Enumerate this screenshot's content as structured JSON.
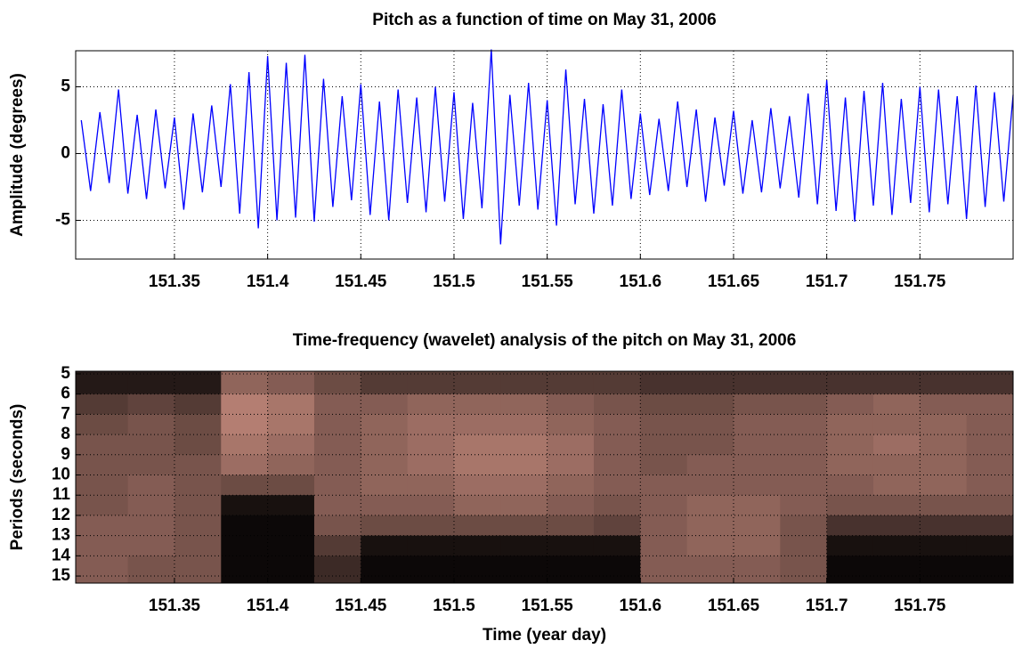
{
  "chart_data": [
    {
      "type": "line",
      "title": "Pitch as a function of time on May 31, 2006",
      "ylabel": "Amplitude (degrees)",
      "x": [
        151.3,
        151.305,
        151.31,
        151.315,
        151.32,
        151.325,
        151.33,
        151.335,
        151.34,
        151.345,
        151.35,
        151.355,
        151.36,
        151.365,
        151.37,
        151.375,
        151.38,
        151.385,
        151.39,
        151.395,
        151.4,
        151.405,
        151.41,
        151.415,
        151.42,
        151.425,
        151.43,
        151.435,
        151.44,
        151.445,
        151.45,
        151.455,
        151.46,
        151.465,
        151.47,
        151.475,
        151.48,
        151.485,
        151.49,
        151.495,
        151.5,
        151.505,
        151.51,
        151.515,
        151.52,
        151.525,
        151.53,
        151.535,
        151.54,
        151.545,
        151.55,
        151.555,
        151.56,
        151.565,
        151.57,
        151.575,
        151.58,
        151.585,
        151.59,
        151.595,
        151.6,
        151.605,
        151.61,
        151.615,
        151.62,
        151.625,
        151.63,
        151.635,
        151.64,
        151.645,
        151.65,
        151.655,
        151.66,
        151.665,
        151.67,
        151.675,
        151.68,
        151.685,
        151.69,
        151.695,
        151.7,
        151.705,
        151.71,
        151.715,
        151.72,
        151.725,
        151.73,
        151.735,
        151.74,
        151.745,
        151.75,
        151.755,
        151.76,
        151.765,
        151.77,
        151.775,
        151.78,
        151.785,
        151.79,
        151.795,
        151.8
      ],
      "values": [
        2.5,
        -2.8,
        3.1,
        -2.2,
        4.8,
        -3.0,
        2.9,
        -3.4,
        3.3,
        -2.6,
        2.7,
        -4.2,
        3.0,
        -2.9,
        3.6,
        -2.5,
        5.2,
        -4.5,
        6.1,
        -5.6,
        7.3,
        -5.0,
        6.8,
        -4.8,
        7.4,
        -5.1,
        5.6,
        -4.0,
        4.3,
        -3.5,
        5.2,
        -4.6,
        3.9,
        -5.0,
        4.8,
        -3.7,
        4.2,
        -4.4,
        5.0,
        -3.6,
        4.6,
        -4.9,
        3.8,
        -4.1,
        7.8,
        -6.8,
        4.4,
        -3.9,
        5.3,
        -4.2,
        4.0,
        -5.4,
        6.3,
        -3.8,
        4.1,
        -4.5,
        3.7,
        -3.9,
        4.8,
        -3.4,
        3.0,
        -3.1,
        2.6,
        -2.8,
        3.9,
        -2.5,
        3.3,
        -3.6,
        2.7,
        -2.4,
        3.2,
        -3.0,
        2.5,
        -2.9,
        3.4,
        -2.6,
        2.8,
        -3.3,
        4.5,
        -3.8,
        5.5,
        -4.3,
        4.2,
        -5.1,
        4.7,
        -3.9,
        5.3,
        -4.6,
        4.1,
        -3.7,
        5.0,
        -4.4,
        4.8,
        -3.8,
        4.3,
        -4.9,
        5.1,
        -4.0,
        4.6,
        -3.6,
        4.4
      ],
      "color": "#0000ff",
      "xlim": [
        151.297,
        151.8
      ],
      "xticks": [
        151.35,
        151.4,
        151.45,
        151.5,
        151.55,
        151.6,
        151.65,
        151.7,
        151.75
      ],
      "ylim": [
        -7.9,
        7.7
      ],
      "yticks": [
        -5,
        0,
        5
      ],
      "grid": true
    },
    {
      "type": "heatmap",
      "title": "Time-frequency (wavelet) analysis of the pitch on May 31, 2006",
      "xlabel": "Time (year day)",
      "ylabel": "Periods (seconds)",
      "x_edges": [
        151.297,
        151.325,
        151.35,
        151.375,
        151.4,
        151.425,
        151.45,
        151.475,
        151.5,
        151.525,
        151.55,
        151.575,
        151.6,
        151.625,
        151.65,
        151.675,
        151.7,
        151.725,
        151.75,
        151.775,
        151.8
      ],
      "y_edges": [
        4.87,
        6,
        7,
        8,
        9,
        10,
        11,
        12,
        13,
        14,
        15.35
      ],
      "z": [
        [
          0.15,
          0.15,
          0.15,
          0.6,
          0.55,
          0.45,
          0.35,
          0.35,
          0.35,
          0.35,
          0.35,
          0.35,
          0.3,
          0.3,
          0.3,
          0.3,
          0.3,
          0.3,
          0.3,
          0.3
        ],
        [
          0.35,
          0.4,
          0.35,
          0.75,
          0.7,
          0.55,
          0.55,
          0.6,
          0.6,
          0.6,
          0.55,
          0.5,
          0.45,
          0.45,
          0.5,
          0.5,
          0.55,
          0.6,
          0.55,
          0.55
        ],
        [
          0.45,
          0.5,
          0.45,
          0.75,
          0.7,
          0.55,
          0.6,
          0.65,
          0.65,
          0.65,
          0.6,
          0.55,
          0.5,
          0.5,
          0.55,
          0.55,
          0.6,
          0.6,
          0.6,
          0.55
        ],
        [
          0.5,
          0.5,
          0.45,
          0.7,
          0.65,
          0.55,
          0.6,
          0.65,
          0.7,
          0.7,
          0.65,
          0.55,
          0.5,
          0.5,
          0.55,
          0.55,
          0.6,
          0.65,
          0.6,
          0.55
        ],
        [
          0.5,
          0.5,
          0.5,
          0.65,
          0.6,
          0.55,
          0.6,
          0.65,
          0.7,
          0.7,
          0.65,
          0.55,
          0.5,
          0.55,
          0.55,
          0.55,
          0.6,
          0.6,
          0.6,
          0.55
        ],
        [
          0.5,
          0.55,
          0.5,
          0.45,
          0.45,
          0.55,
          0.6,
          0.6,
          0.65,
          0.65,
          0.6,
          0.55,
          0.55,
          0.55,
          0.55,
          0.55,
          0.55,
          0.6,
          0.6,
          0.55
        ],
        [
          0.5,
          0.55,
          0.5,
          0.1,
          0.1,
          0.55,
          0.55,
          0.55,
          0.6,
          0.6,
          0.55,
          0.5,
          0.55,
          0.6,
          0.6,
          0.55,
          0.5,
          0.5,
          0.5,
          0.5
        ],
        [
          0.55,
          0.55,
          0.5,
          0.05,
          0.05,
          0.5,
          0.45,
          0.45,
          0.45,
          0.45,
          0.45,
          0.4,
          0.55,
          0.6,
          0.6,
          0.5,
          0.3,
          0.3,
          0.3,
          0.3
        ],
        [
          0.55,
          0.55,
          0.5,
          0.05,
          0.05,
          0.35,
          0.1,
          0.1,
          0.1,
          0.1,
          0.1,
          0.1,
          0.55,
          0.6,
          0.6,
          0.5,
          0.1,
          0.1,
          0.1,
          0.1
        ],
        [
          0.55,
          0.5,
          0.5,
          0.05,
          0.05,
          0.25,
          0.05,
          0.05,
          0.05,
          0.05,
          0.05,
          0.05,
          0.55,
          0.55,
          0.55,
          0.5,
          0.05,
          0.05,
          0.05,
          0.05
        ]
      ],
      "colormap": [
        "#000000",
        "#f0a898"
      ],
      "xlim": [
        151.297,
        151.8
      ],
      "xticks": [
        151.35,
        151.4,
        151.45,
        151.5,
        151.55,
        151.6,
        151.65,
        151.7,
        151.75
      ],
      "ylim": [
        4.87,
        15.35
      ],
      "yticks": [
        5,
        6,
        7,
        8,
        9,
        10,
        11,
        12,
        13,
        14,
        15
      ],
      "y_reversed": true,
      "grid": true
    }
  ]
}
